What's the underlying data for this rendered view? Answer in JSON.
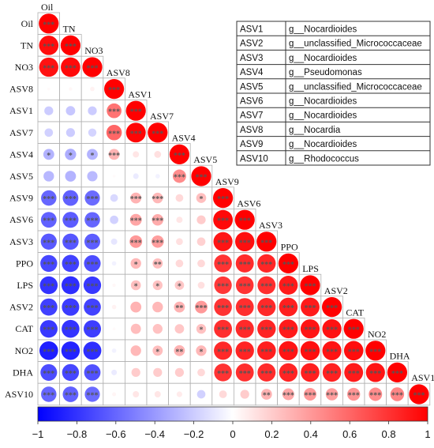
{
  "chart_data": {
    "type": "heatmap",
    "variables": [
      "Oil",
      "TN",
      "NO3",
      "ASV8",
      "ASV1",
      "ASV7",
      "ASV4",
      "ASV5",
      "ASV9",
      "ASV6",
      "ASV3",
      "PPO",
      "LPS",
      "ASV2",
      "CAT",
      "NO2",
      "DHA",
      "ASV10"
    ],
    "lower_triangle_correlations": [
      [
        1
      ],
      [
        0.95,
        1
      ],
      [
        0.93,
        0.96,
        1
      ],
      [
        0.02,
        0.03,
        0.05,
        1
      ],
      [
        -0.2,
        -0.22,
        -0.2,
        0.55,
        1
      ],
      [
        -0.18,
        -0.2,
        -0.17,
        0.6,
        0.98,
        1
      ],
      [
        -0.3,
        -0.32,
        -0.3,
        0.3,
        0.1,
        0.12,
        1
      ],
      [
        -0.28,
        -0.3,
        -0.27,
        0.02,
        -0.08,
        -0.05,
        0.45,
        1
      ],
      [
        -0.6,
        -0.62,
        -0.58,
        -0.15,
        0.3,
        0.28,
        0.15,
        0.25,
        1
      ],
      [
        -0.62,
        -0.64,
        -0.6,
        -0.18,
        0.35,
        0.33,
        0.1,
        0.2,
        0.97,
        1
      ],
      [
        -0.65,
        -0.66,
        -0.63,
        -0.1,
        0.4,
        0.38,
        0.12,
        0.18,
        0.92,
        0.94,
        1
      ],
      [
        -0.72,
        -0.74,
        -0.7,
        -0.05,
        0.28,
        0.26,
        0.15,
        0.15,
        0.8,
        0.83,
        0.85,
        1
      ],
      [
        -0.8,
        -0.82,
        -0.78,
        0.03,
        0.25,
        0.24,
        0.22,
        0.12,
        0.78,
        0.8,
        0.82,
        0.9,
        1
      ],
      [
        -0.75,
        -0.77,
        -0.74,
        0.05,
        0.3,
        0.28,
        0.3,
        0.4,
        0.8,
        0.82,
        0.84,
        0.88,
        0.9,
        1
      ],
      [
        -0.78,
        -0.8,
        -0.76,
        0.02,
        0.26,
        0.24,
        0.22,
        0.24,
        0.82,
        0.84,
        0.86,
        0.9,
        0.92,
        0.93,
        1
      ],
      [
        -0.88,
        -0.86,
        -0.82,
        -0.05,
        0.28,
        0.26,
        0.3,
        0.28,
        0.84,
        0.86,
        0.88,
        0.92,
        0.94,
        0.92,
        0.95,
        1
      ],
      [
        -0.7,
        -0.72,
        -0.68,
        -0.08,
        0.2,
        0.2,
        0.2,
        0.15,
        0.8,
        0.82,
        0.83,
        0.86,
        0.88,
        0.87,
        0.9,
        0.92,
        1
      ],
      [
        -0.6,
        -0.62,
        -0.58,
        0.04,
        0.1,
        0.1,
        0.08,
        -0.18,
        0.15,
        0.2,
        0.3,
        0.35,
        0.4,
        0.38,
        0.42,
        0.45,
        0.48,
        1
      ]
    ],
    "significance_lower_triangle": [
      [
        "***"
      ],
      [
        "***",
        "***"
      ],
      [
        "***",
        "***",
        "***"
      ],
      [
        "",
        "",
        "",
        "***"
      ],
      [
        "",
        "",
        "",
        "***",
        "***"
      ],
      [
        "",
        "",
        "",
        "***",
        "***",
        "***"
      ],
      [
        "*",
        "*",
        "*",
        "***",
        "",
        "",
        "***"
      ],
      [
        "",
        "",
        "",
        "",
        "",
        "",
        "***",
        "***"
      ],
      [
        "***",
        "***",
        "***",
        "",
        "***",
        "***",
        "",
        "*",
        "***"
      ],
      [
        "***",
        "***",
        "***",
        "",
        "***",
        "***",
        "",
        "",
        "***",
        "***"
      ],
      [
        "***",
        "***",
        "***",
        "",
        "***",
        "***",
        "",
        "",
        "***",
        "***",
        "***"
      ],
      [
        "***",
        "***",
        "***",
        "",
        "*",
        "**",
        "",
        "",
        "***",
        "***",
        "***",
        "***"
      ],
      [
        "***",
        "***",
        "***",
        "",
        "*",
        "*",
        "*",
        "",
        "***",
        "***",
        "***",
        "***",
        "***"
      ],
      [
        "***",
        "***",
        "***",
        "",
        "",
        "",
        "**",
        "***",
        "***",
        "***",
        "***",
        "***",
        "***",
        "***"
      ],
      [
        "***",
        "***",
        "***",
        "",
        "",
        "",
        "",
        "*",
        "***",
        "***",
        "***",
        "***",
        "***",
        "***",
        "***"
      ],
      [
        "***",
        "***",
        "***",
        "",
        "",
        "*",
        "**",
        "*",
        "***",
        "***",
        "***",
        "***",
        "***",
        "***",
        "***",
        "***"
      ],
      [
        "***",
        "***",
        "***",
        "",
        "",
        "",
        "",
        "",
        "***",
        "***",
        "***",
        "***",
        "***",
        "***",
        "***",
        "***",
        "***"
      ],
      [
        "***",
        "***",
        "***",
        "",
        "",
        "",
        "",
        "",
        "",
        "",
        "**",
        "***",
        "***",
        "***",
        "***",
        "***",
        "***",
        "***"
      ]
    ],
    "colorbar": {
      "range": [
        -1,
        1
      ],
      "ticks": [
        "-1",
        "-0.8",
        "-0.6",
        "-0.4",
        "-0.2",
        "0",
        "0.2",
        "0.4",
        "0.6",
        "0.8",
        "1"
      ],
      "colors": {
        "negative": "#0000ff",
        "zero": "#ffffff",
        "positive": "#ff0000"
      }
    },
    "legend_table": [
      {
        "asv": "ASV1",
        "genus": "g__Nocardioides"
      },
      {
        "asv": "ASV2",
        "genus": "g__unclassified_Micrococcaceae"
      },
      {
        "asv": "ASV3",
        "genus": "g__Nocardioides"
      },
      {
        "asv": "ASV4",
        "genus": "g__Pseudomonas"
      },
      {
        "asv": "ASV5",
        "genus": "g__unclassified_Micrococcaceae"
      },
      {
        "asv": "ASV6",
        "genus": "g__Nocardioides"
      },
      {
        "asv": "ASV7",
        "genus": "g__Nocardioides"
      },
      {
        "asv": "ASV8",
        "genus": "g__Nocardia"
      },
      {
        "asv": "ASV9",
        "genus": "g__Nocardioides"
      },
      {
        "asv": "ASV10",
        "genus": "g__Rhodococcus"
      }
    ],
    "legend_placement": "top-right",
    "grid": true
  }
}
